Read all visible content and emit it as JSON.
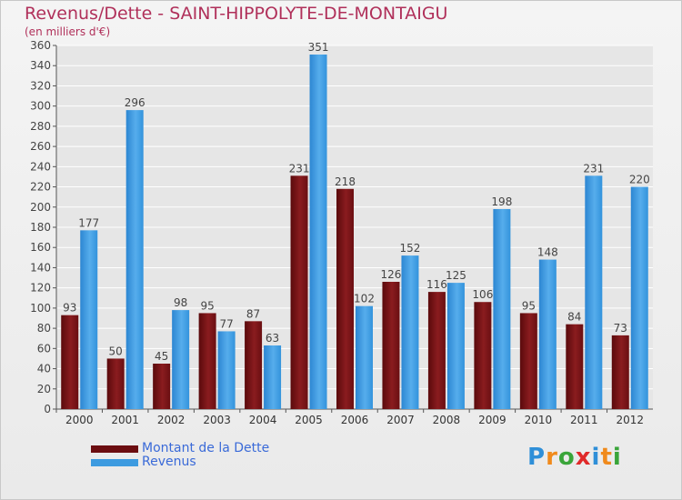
{
  "title": "Revenus/Dette - SAINT-HIPPOLYTE-DE-MONTAIGU",
  "subtitle": "(en milliers d'€)",
  "chart_data": {
    "type": "bar",
    "categories": [
      "2000",
      "2001",
      "2002",
      "2003",
      "2004",
      "2005",
      "2006",
      "2007",
      "2008",
      "2009",
      "2010",
      "2011",
      "2012"
    ],
    "series": [
      {
        "name": "Montant de la Dette",
        "color": "#7a1416",
        "values": [
          93,
          50,
          45,
          95,
          87,
          231,
          218,
          126,
          116,
          106,
          95,
          84,
          73
        ]
      },
      {
        "name": "Revenus",
        "color": "#3d9be0",
        "values": [
          177,
          296,
          98,
          77,
          63,
          351,
          102,
          152,
          125,
          198,
          148,
          231,
          220
        ]
      }
    ],
    "ylim": [
      0,
      360
    ],
    "yticks": [
      0,
      20,
      40,
      60,
      80,
      100,
      120,
      140,
      160,
      180,
      200,
      220,
      240,
      260,
      280,
      300,
      320,
      340,
      360
    ],
    "grid": true,
    "legend_position": "bottom-left"
  },
  "legend": [
    {
      "label": "Montant de la Dette",
      "color": "#7a1416"
    },
    {
      "label": "Revenus",
      "color": "#3d9be0"
    }
  ],
  "logo": {
    "text": "Proxiti",
    "letters": [
      {
        "ch": "P",
        "color": "#2f8fd8"
      },
      {
        "ch": "r",
        "color": "#f08a1c"
      },
      {
        "ch": "o",
        "color": "#3aa53a"
      },
      {
        "ch": "x",
        "color": "#e02a2a"
      },
      {
        "ch": "i",
        "color": "#2f8fd8"
      },
      {
        "ch": "t",
        "color": "#f08a1c"
      },
      {
        "ch": "i",
        "color": "#3aa53a"
      }
    ]
  }
}
